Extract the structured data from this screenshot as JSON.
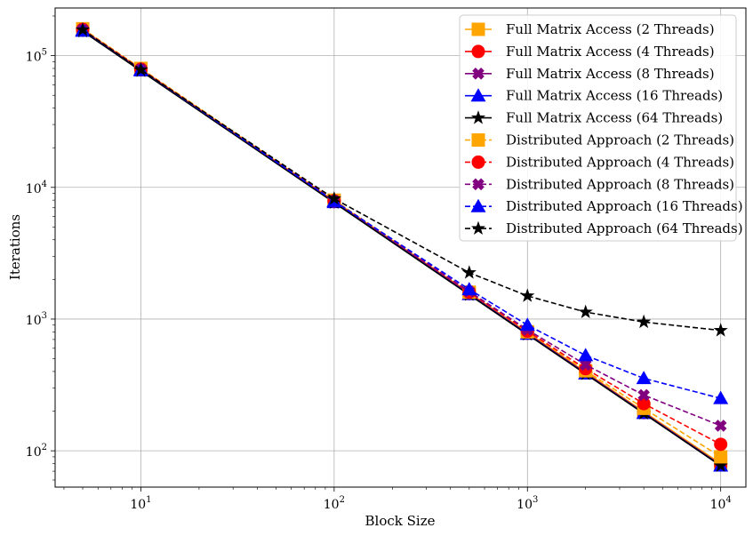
{
  "chart_data": {
    "type": "line",
    "x_scale": "log",
    "y_scale": "log",
    "xlabel": "Block Size",
    "ylabel": "Iterations",
    "xlim": [
      3.6,
      13500
    ],
    "ylim": [
      53,
      230000
    ],
    "grid": true,
    "legend_position": "top-right",
    "x_ticks": [
      {
        "value": 10,
        "base": "10",
        "exp": "1"
      },
      {
        "value": 100,
        "base": "10",
        "exp": "2"
      },
      {
        "value": 1000,
        "base": "10",
        "exp": "3"
      },
      {
        "value": 10000,
        "base": "10",
        "exp": "4"
      }
    ],
    "y_ticks": [
      {
        "value": 100,
        "base": "10",
        "exp": "2"
      },
      {
        "value": 1000,
        "base": "10",
        "exp": "3"
      },
      {
        "value": 10000,
        "base": "10",
        "exp": "4"
      },
      {
        "value": 100000,
        "base": "10",
        "exp": "5"
      }
    ],
    "x": [
      5,
      10,
      100,
      500,
      1000,
      2000,
      4000,
      10000
    ],
    "series": [
      {
        "name": "Full Matrix Access (2 Threads)",
        "color": "#ffa500",
        "line": "solid",
        "marker": "square",
        "values": [
          158000,
          79000,
          7900,
          1580,
          790,
          395,
          198,
          80
        ]
      },
      {
        "name": "Full Matrix Access (4 Threads)",
        "color": "#ff0000",
        "line": "solid",
        "marker": "circle",
        "values": [
          156000,
          78000,
          7800,
          1560,
          780,
          390,
          195,
          78
        ]
      },
      {
        "name": "Full Matrix Access (8 Threads)",
        "color": "#800080",
        "line": "solid",
        "marker": "x",
        "values": [
          155000,
          77500,
          7750,
          1550,
          775,
          388,
          194,
          78
        ]
      },
      {
        "name": "Full Matrix Access (16 Threads)",
        "color": "#0000ff",
        "line": "solid",
        "marker": "triangle",
        "values": [
          154000,
          77000,
          7700,
          1540,
          770,
          385,
          193,
          77
        ]
      },
      {
        "name": "Full Matrix Access (64 Threads)",
        "color": "#000000",
        "line": "solid",
        "marker": "star",
        "values": [
          153000,
          76500,
          7650,
          1530,
          765,
          383,
          192,
          77
        ]
      },
      {
        "name": "Distributed Approach (2 Threads)",
        "color": "#ffa500",
        "line": "dashed",
        "marker": "square",
        "values": [
          160000,
          80000,
          8000,
          1600,
          800,
          405,
          210,
          90
        ]
      },
      {
        "name": "Distributed Approach (4 Threads)",
        "color": "#ff0000",
        "line": "dashed",
        "marker": "circle",
        "values": [
          158000,
          79000,
          7900,
          1600,
          810,
          420,
          228,
          112
        ]
      },
      {
        "name": "Distributed Approach (8 Threads)",
        "color": "#800080",
        "line": "dashed",
        "marker": "x",
        "values": [
          157000,
          78500,
          7900,
          1620,
          830,
          450,
          265,
          155
        ]
      },
      {
        "name": "Distributed Approach (16 Threads)",
        "color": "#0000ff",
        "line": "dashed",
        "marker": "triangle",
        "values": [
          156000,
          78000,
          7850,
          1680,
          900,
          530,
          355,
          250
        ]
      },
      {
        "name": "Distributed Approach (64 Threads)",
        "color": "#000000",
        "line": "dashed",
        "marker": "star",
        "values": [
          157000,
          78000,
          8200,
          2250,
          1500,
          1130,
          950,
          820
        ]
      }
    ]
  }
}
